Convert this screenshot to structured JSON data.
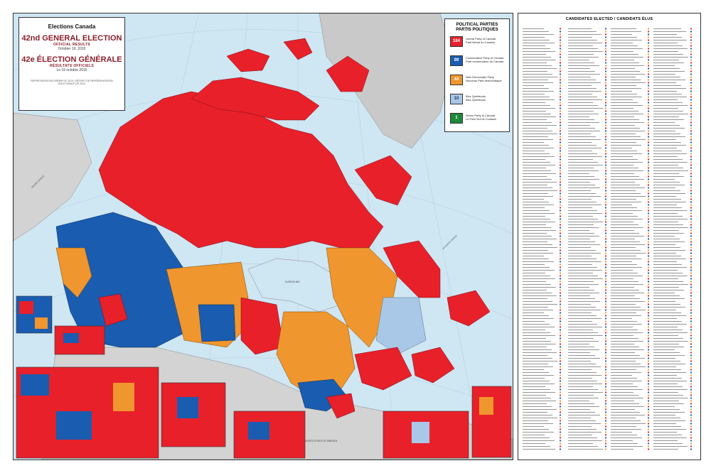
{
  "title_box": {
    "brand": "Elections Canada",
    "title_en": "42nd GENERAL ELECTION",
    "subtitle_en": "OFFICIAL RESULTS",
    "date_en": "October 19, 2015",
    "title_fr": "42e ÉLECTION GÉNÉRALE",
    "subtitle_fr": "RÉSULTATS OFFICIELS",
    "date_fr": "Le 19 octobre 2015",
    "note": "REPRESENTATION ORDER OF 2013 / DÉCRET DE REPRÉSENTATION ÉLECTORALE DE 2013"
  },
  "legend": {
    "title_en": "POLITICAL PARTIES",
    "title_fr": "PARTIS POLITIQUES",
    "parties": [
      {
        "count": "184",
        "name_en": "Liberal Party of Canada",
        "name_fr": "Parti libéral du Canada",
        "color": "#e8202a"
      },
      {
        "count": "99",
        "name_en": "Conservative Party of Canada",
        "name_fr": "Parti conservateur du Canada",
        "color": "#1a5cb0"
      },
      {
        "count": "44",
        "name_en": "New Democratic Party",
        "name_fr": "Nouveau Parti démocratique",
        "color": "#f0962e"
      },
      {
        "count": "10",
        "name_en": "Bloc Québécois",
        "name_fr": "Bloc Québécois",
        "color": "#a9c8e8"
      },
      {
        "count": "1",
        "name_en": "Green Party of Canada",
        "name_fr": "Le Parti Vert du Canada",
        "color": "#1c8a3a"
      }
    ]
  },
  "candidates_panel": {
    "title": "CANDIDATES ELECTED / CANDIDATS ÉLUS"
  },
  "map_labels": {
    "ocean_pacific": "PACIFIC OCEAN",
    "ocean_atlantic": "ATLANTIC OCEAN",
    "hudson_bay": "HUDSON BAY",
    "usa": "UNITED STATES OF AMERICA"
  }
}
